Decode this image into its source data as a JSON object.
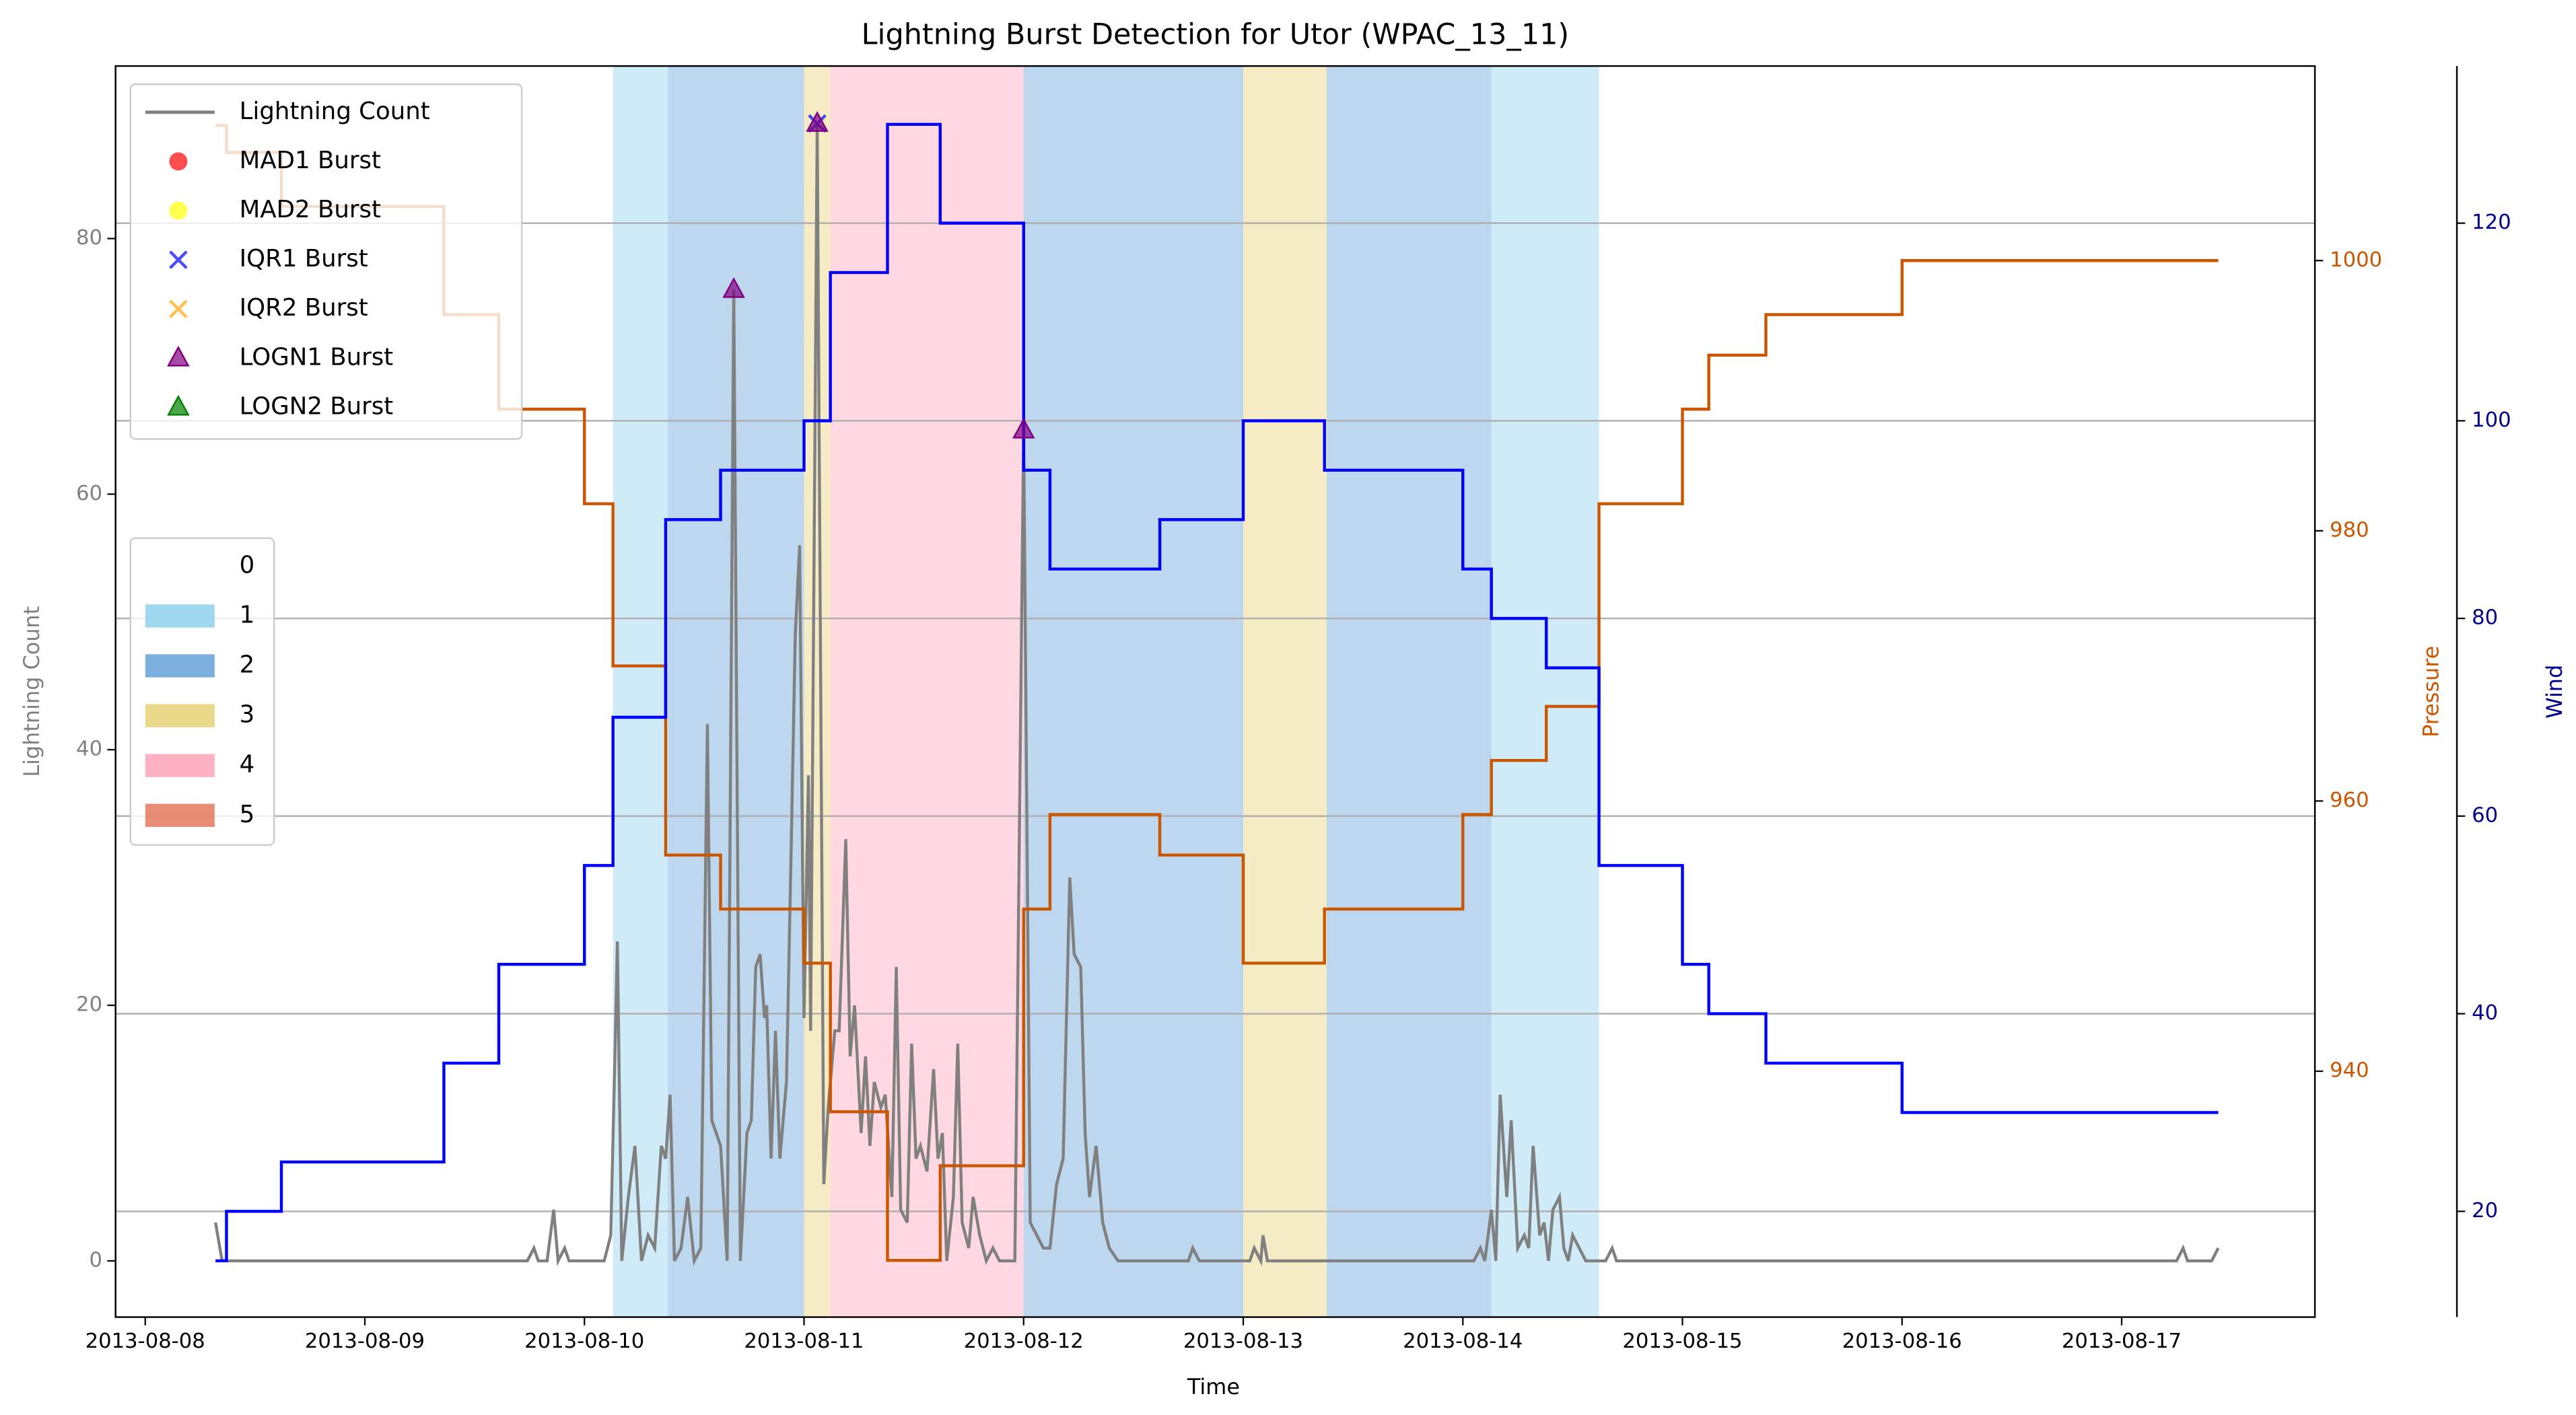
{
  "chart_data": {
    "type": "line",
    "title": "Lightning Burst Detection for Utor (WPAC_13_11)",
    "xlabel": "Time",
    "ylabel": "Lightning Count",
    "y2label": "Pressure",
    "y3label": "Wind",
    "xlim": [
      -0.135,
      9.88
    ],
    "xticks": [
      {
        "value": 0,
        "label": "2013-08-08"
      },
      {
        "value": 1,
        "label": "2013-08-09"
      },
      {
        "value": 2,
        "label": "2013-08-10"
      },
      {
        "value": 3,
        "label": "2013-08-11"
      },
      {
        "value": 4,
        "label": "2013-08-12"
      },
      {
        "value": 5,
        "label": "2013-08-13"
      },
      {
        "value": 6,
        "label": "2013-08-14"
      },
      {
        "value": 7,
        "label": "2013-08-15"
      },
      {
        "value": 8,
        "label": "2013-08-16"
      },
      {
        "value": 9,
        "label": "2013-08-17"
      }
    ],
    "ylim": [
      -4.4,
      93.5
    ],
    "yticks": [
      0,
      20,
      40,
      60,
      80
    ],
    "y2lim": [
      921.8,
      1014.4
    ],
    "y2ticks": [
      940,
      960,
      980,
      1000
    ],
    "y3lim": [
      9.3,
      135.9
    ],
    "y3ticks": [
      20,
      40,
      60,
      80,
      100,
      120
    ],
    "grid_axis": "y3",
    "axis_colors": {
      "y": "#808080",
      "y2": "#cc5500",
      "y3": "#00008b"
    },
    "legend_loc": "upper left",
    "series": [
      {
        "name": "Lightning Count",
        "color": "#808080",
        "marker": "line",
        "x": [
          0.32,
          0.35,
          1.74,
          1.77,
          1.79,
          1.83,
          1.86,
          1.88,
          1.91,
          1.93,
          2.09,
          2.12,
          2.14,
          2.15,
          2.17,
          2.2,
          2.23,
          2.26,
          2.29,
          2.32,
          2.35,
          2.37,
          2.39,
          2.41,
          2.44,
          2.47,
          2.5,
          2.53,
          2.56,
          2.58,
          2.62,
          2.65,
          2.68,
          2.71,
          2.74,
          2.76,
          2.78,
          2.8,
          2.82,
          2.83,
          2.85,
          2.87,
          2.89,
          2.92,
          2.94,
          2.96,
          2.98,
          3.0,
          3.02,
          3.03,
          3.06,
          3.09,
          3.11,
          3.14,
          3.16,
          3.19,
          3.21,
          3.23,
          3.26,
          3.28,
          3.3,
          3.32,
          3.35,
          3.37,
          3.4,
          3.42,
          3.44,
          3.47,
          3.49,
          3.51,
          3.53,
          3.56,
          3.59,
          3.61,
          3.63,
          3.65,
          3.68,
          3.7,
          3.72,
          3.75,
          3.77,
          3.8,
          3.83,
          3.86,
          3.89,
          3.96,
          4.0,
          4.03,
          4.06,
          4.09,
          4.12,
          4.15,
          4.18,
          4.21,
          4.23,
          4.26,
          4.28,
          4.3,
          4.33,
          4.36,
          4.39,
          4.43,
          4.75,
          4.77,
          4.8,
          5.03,
          5.05,
          5.08,
          5.09,
          5.11,
          6.05,
          6.08,
          6.1,
          6.13,
          6.15,
          6.17,
          6.2,
          6.22,
          6.25,
          6.28,
          6.3,
          6.32,
          6.35,
          6.37,
          6.39,
          6.41,
          6.44,
          6.46,
          6.48,
          6.5,
          6.53,
          6.56,
          6.65,
          6.68,
          6.7,
          9.25,
          9.28,
          9.3,
          9.41,
          9.44
        ],
        "values": [
          3,
          0,
          0,
          1,
          0,
          0,
          4,
          0,
          1,
          0,
          0,
          2,
          17,
          25,
          0,
          5,
          9,
          0,
          2,
          1,
          9,
          8,
          13,
          0,
          1,
          5,
          0,
          1,
          42,
          11,
          9,
          0,
          76,
          0,
          10,
          11,
          23,
          24,
          19,
          20,
          8,
          18,
          8,
          14,
          31,
          49,
          56,
          19,
          38,
          18,
          89,
          6,
          12,
          18,
          18,
          33,
          16,
          20,
          10,
          16,
          9,
          14,
          12,
          13,
          5,
          23,
          4,
          3,
          17,
          8,
          9,
          7,
          15,
          8,
          10,
          0,
          5,
          17,
          3,
          1,
          5,
          2,
          0,
          1,
          0,
          0,
          65,
          3,
          2,
          1,
          1,
          6,
          8,
          30,
          24,
          23,
          10,
          5,
          9,
          3,
          1,
          0,
          0,
          1,
          0,
          0,
          1,
          0,
          2,
          0,
          0,
          1,
          0,
          4,
          0,
          13,
          5,
          11,
          1,
          2,
          1,
          9,
          2,
          3,
          0,
          4,
          5,
          1,
          0,
          2,
          1,
          0,
          0,
          1,
          0,
          0,
          1,
          0,
          0,
          1
        ]
      },
      {
        "name": "MAD1 Burst",
        "color": "#ff0000",
        "marker": "o",
        "x": [],
        "values": []
      },
      {
        "name": "MAD2 Burst",
        "color": "#ffff00",
        "marker": "o",
        "x": [],
        "values": []
      },
      {
        "name": "IQR1 Burst",
        "color": "#0000ff",
        "marker": "x",
        "x": [
          3.06
        ],
        "values": [
          89
        ]
      },
      {
        "name": "IQR2 Burst",
        "color": "#ffa500",
        "marker": "x",
        "x": [],
        "values": []
      },
      {
        "name": "LOGN1 Burst",
        "color": "#800080",
        "marker": "^",
        "x": [
          2.68,
          3.06,
          4.0
        ],
        "values": [
          76,
          89,
          65
        ]
      },
      {
        "name": "LOGN2 Burst",
        "color": "#008000",
        "marker": "^",
        "x": [],
        "values": []
      }
    ],
    "pressure": {
      "axis": "y2",
      "color": "#cc5500",
      "step": "post",
      "x": [
        0.32,
        0.37,
        0.62,
        1.36,
        1.61,
        2.0,
        2.13,
        2.37,
        2.62,
        3.0,
        3.12,
        3.38,
        3.62,
        4.0,
        4.12,
        4.62,
        5.0,
        5.37,
        6.0,
        6.13,
        6.38,
        6.62,
        7.0,
        7.12,
        7.38,
        8.0,
        9.44
      ],
      "values": [
        1010,
        1008,
        1004,
        996,
        989,
        982,
        970,
        956,
        952,
        948,
        937,
        926,
        933,
        952,
        959,
        956,
        948,
        952,
        959,
        963,
        967,
        982,
        989,
        993,
        996,
        1000,
        1000
      ]
    },
    "wind": {
      "axis": "y3",
      "color": "#0000ff",
      "step": "post",
      "x": [
        0.32,
        0.37,
        0.62,
        1.36,
        1.61,
        2.0,
        2.13,
        2.37,
        2.62,
        3.0,
        3.12,
        3.38,
        3.62,
        4.0,
        4.12,
        4.62,
        5.0,
        5.37,
        6.0,
        6.13,
        6.38,
        6.62,
        7.0,
        7.12,
        7.38,
        8.0,
        9.44
      ],
      "values": [
        15,
        20,
        25,
        35,
        45,
        55,
        70,
        90,
        95,
        100,
        115,
        130,
        120,
        95,
        85,
        90,
        100,
        95,
        85,
        80,
        75,
        55,
        45,
        40,
        35,
        30,
        30
      ]
    },
    "intensity_legend": {
      "labels": [
        "0",
        "1",
        "2",
        "3",
        "4",
        "5"
      ],
      "colors": [
        "#ffffff",
        "#87ceeb",
        "#5b9bd5",
        "#e6cf6e",
        "#ff9eb5",
        "#e07050"
      ]
    },
    "intensity_spans": {
      "x0": [
        2.13,
        2.38,
        3.0,
        3.12,
        4.0,
        5.0,
        5.38,
        6.13
      ],
      "x1": [
        2.38,
        3.0,
        3.12,
        4.0,
        5.0,
        5.38,
        6.13,
        6.62
      ],
      "class": [
        1,
        2,
        3,
        4,
        2,
        3,
        2,
        1
      ]
    }
  }
}
